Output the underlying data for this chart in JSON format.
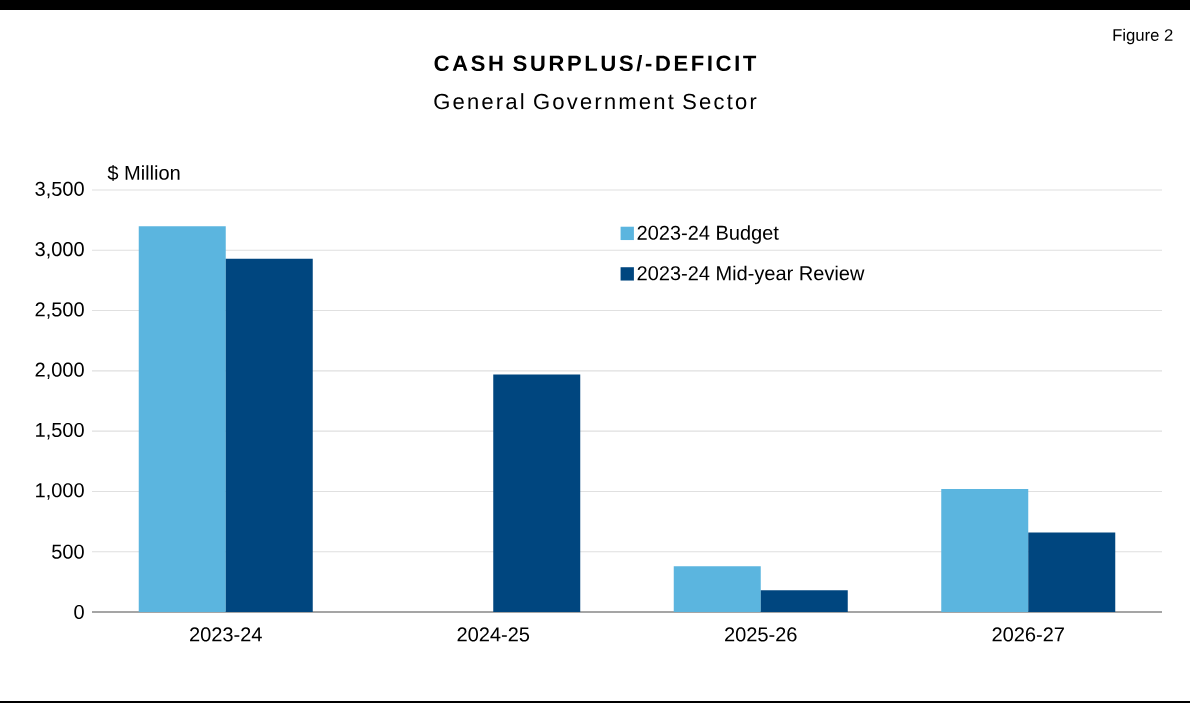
{
  "chart_data": {
    "type": "bar",
    "title": "CASH SURPLUS/-DEFICIT",
    "subtitle": "General Government Sector",
    "ylabel": "$ Million",
    "annotations": [
      "Figure 2"
    ],
    "categories": [
      "2023-24",
      "2024-25",
      "2025-26",
      "2026-27"
    ],
    "series": [
      {
        "name": "2023-24 Budget",
        "color": "#5bb5df",
        "values": [
          3200,
          0,
          380,
          1020
        ]
      },
      {
        "name": "2023-24 Mid-year Review",
        "color": "#00467f",
        "values": [
          2930,
          1970,
          180,
          660
        ]
      }
    ],
    "ylim": [
      0,
      3500
    ],
    "yticks": [
      0,
      {
        "value": 500,
        "label": "500"
      },
      {
        "value": 1000,
        "label": "1,000"
      },
      {
        "value": 1500,
        "label": "1,500"
      },
      {
        "value": 2000,
        "label": "2,000"
      },
      {
        "value": 2500,
        "label": "2,500"
      },
      {
        "value": 3000,
        "label": "3,000"
      },
      {
        "value": 3500,
        "label": "3,500"
      }
    ],
    "grid": "y",
    "legend": "top right"
  }
}
